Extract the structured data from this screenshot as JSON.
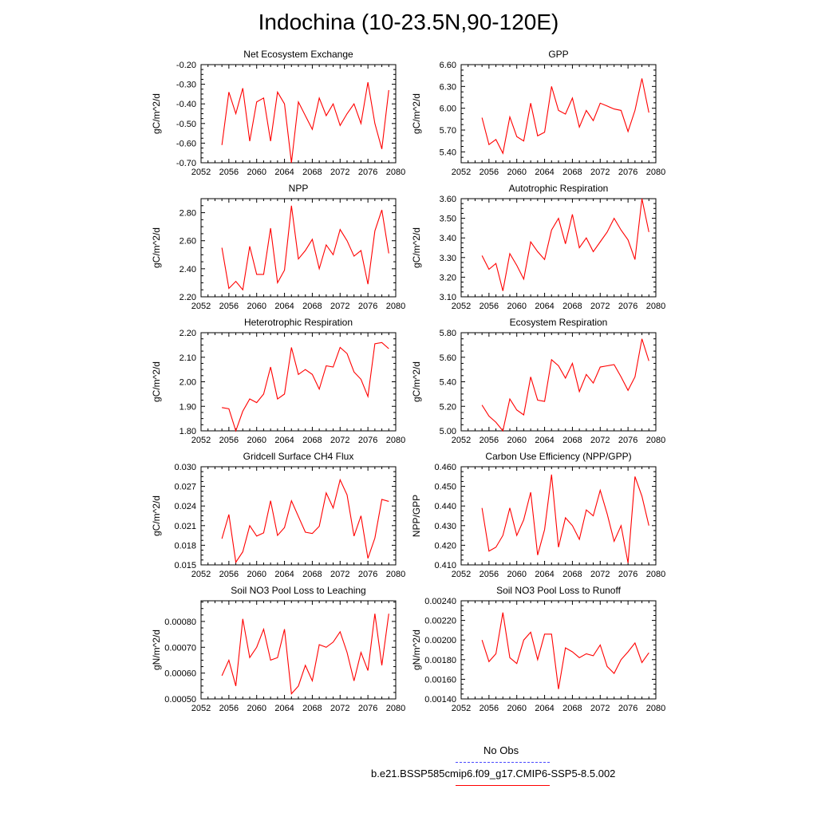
{
  "page": {
    "title": "Indochina (10-23.5N,90-120E)"
  },
  "legend": {
    "obs_label": "No Obs",
    "model_label": "b.e21.BSSP585cmip6.f09_g17.CMIP6-SSP5-8.5.002"
  },
  "colors": {
    "series": "#ff0000",
    "obs": "#4a4aff",
    "axes": "#000000"
  },
  "chart_data": [
    {
      "type": "line",
      "title": "Net Ecosystem Exchange",
      "xlabel": "",
      "ylabel": "gC/m^2/d",
      "xlim": [
        2052,
        2080
      ],
      "ylim": [
        -0.7,
        -0.2
      ],
      "xticks": [
        2052,
        2056,
        2060,
        2064,
        2068,
        2072,
        2076,
        2080
      ],
      "xtick_labels": [
        "2052",
        "2056",
        "2060",
        "2064",
        "2068",
        "2072",
        "2076",
        "2080"
      ],
      "yticks": [
        -0.7,
        -0.6,
        -0.5,
        -0.4,
        -0.3,
        -0.2
      ],
      "ytick_labels": [
        "-0.70",
        "-0.60",
        "-0.50",
        "-0.40",
        "-0.30",
        "-0.20"
      ],
      "x": [
        2055,
        2056,
        2057,
        2058,
        2059,
        2060,
        2061,
        2062,
        2063,
        2064,
        2065,
        2066,
        2067,
        2068,
        2069,
        2070,
        2071,
        2072,
        2073,
        2074,
        2075,
        2076,
        2077,
        2078,
        2079
      ],
      "values": [
        -0.61,
        -0.34,
        -0.45,
        -0.32,
        -0.59,
        -0.39,
        -0.37,
        -0.59,
        -0.34,
        -0.4,
        -0.7,
        -0.39,
        -0.46,
        -0.53,
        -0.37,
        -0.46,
        -0.4,
        -0.51,
        -0.45,
        -0.4,
        -0.5,
        -0.29,
        -0.5,
        -0.63,
        -0.33
      ]
    },
    {
      "type": "line",
      "title": "GPP",
      "xlabel": "",
      "ylabel": "gC/m^2/d",
      "xlim": [
        2052,
        2080
      ],
      "ylim": [
        5.25,
        6.6
      ],
      "xticks": [
        2052,
        2056,
        2060,
        2064,
        2068,
        2072,
        2076,
        2080
      ],
      "xtick_labels": [
        "2052",
        "2056",
        "2060",
        "2064",
        "2068",
        "2072",
        "2076",
        "2080"
      ],
      "yticks": [
        5.4,
        5.7,
        6.0,
        6.3,
        6.6
      ],
      "ytick_labels": [
        "5.40",
        "5.70",
        "6.00",
        "6.30",
        "6.60"
      ],
      "x": [
        2055,
        2056,
        2057,
        2058,
        2059,
        2060,
        2061,
        2062,
        2063,
        2064,
        2065,
        2066,
        2067,
        2068,
        2069,
        2070,
        2071,
        2072,
        2073,
        2074,
        2075,
        2076,
        2077,
        2078,
        2079
      ],
      "values": [
        5.87,
        5.5,
        5.57,
        5.38,
        5.88,
        5.61,
        5.55,
        6.07,
        5.62,
        5.67,
        6.3,
        5.97,
        5.92,
        6.14,
        5.74,
        5.97,
        5.83,
        6.07,
        6.03,
        5.99,
        5.97,
        5.68,
        5.97,
        6.41,
        5.94
      ]
    },
    {
      "type": "line",
      "title": "NPP",
      "xlabel": "",
      "ylabel": "gC/m^2/d",
      "xlim": [
        2052,
        2080
      ],
      "ylim": [
        2.2,
        2.9
      ],
      "xticks": [
        2052,
        2056,
        2060,
        2064,
        2068,
        2072,
        2076,
        2080
      ],
      "xtick_labels": [
        "2052",
        "2056",
        "2060",
        "2064",
        "2068",
        "2072",
        "2076",
        "2080"
      ],
      "yticks": [
        2.2,
        2.4,
        2.6,
        2.8
      ],
      "ytick_labels": [
        "2.20",
        "2.40",
        "2.60",
        "2.80"
      ],
      "x": [
        2055,
        2056,
        2057,
        2058,
        2059,
        2060,
        2061,
        2062,
        2063,
        2064,
        2065,
        2066,
        2067,
        2068,
        2069,
        2070,
        2071,
        2072,
        2073,
        2074,
        2075,
        2076,
        2077,
        2078,
        2079
      ],
      "values": [
        2.55,
        2.26,
        2.31,
        2.25,
        2.56,
        2.36,
        2.36,
        2.69,
        2.3,
        2.39,
        2.85,
        2.47,
        2.53,
        2.61,
        2.4,
        2.57,
        2.5,
        2.68,
        2.6,
        2.49,
        2.53,
        2.29,
        2.67,
        2.82,
        2.51
      ]
    },
    {
      "type": "line",
      "title": "Autotrophic Respiration",
      "xlabel": "",
      "ylabel": "gC/m^2/d",
      "xlim": [
        2052,
        2080
      ],
      "ylim": [
        3.1,
        3.6
      ],
      "xticks": [
        2052,
        2056,
        2060,
        2064,
        2068,
        2072,
        2076,
        2080
      ],
      "xtick_labels": [
        "2052",
        "2056",
        "2060",
        "2064",
        "2068",
        "2072",
        "2076",
        "2080"
      ],
      "yticks": [
        3.1,
        3.2,
        3.3,
        3.4,
        3.5,
        3.6
      ],
      "ytick_labels": [
        "3.10",
        "3.20",
        "3.30",
        "3.40",
        "3.50",
        "3.60"
      ],
      "x": [
        2055,
        2056,
        2057,
        2058,
        2059,
        2060,
        2061,
        2062,
        2063,
        2064,
        2065,
        2066,
        2067,
        2068,
        2069,
        2070,
        2071,
        2072,
        2073,
        2074,
        2075,
        2076,
        2077,
        2078,
        2079
      ],
      "values": [
        3.31,
        3.24,
        3.27,
        3.13,
        3.32,
        3.26,
        3.19,
        3.38,
        3.33,
        3.29,
        3.44,
        3.5,
        3.37,
        3.52,
        3.35,
        3.4,
        3.33,
        3.38,
        3.43,
        3.5,
        3.44,
        3.39,
        3.29,
        3.6,
        3.43
      ]
    },
    {
      "type": "line",
      "title": "Heterotrophic Respiration",
      "xlabel": "",
      "ylabel": "gC/m^2/d",
      "xlim": [
        2052,
        2080
      ],
      "ylim": [
        1.8,
        2.2
      ],
      "xticks": [
        2052,
        2056,
        2060,
        2064,
        2068,
        2072,
        2076,
        2080
      ],
      "xtick_labels": [
        "2052",
        "2056",
        "2060",
        "2064",
        "2068",
        "2072",
        "2076",
        "2080"
      ],
      "yticks": [
        1.8,
        1.9,
        2.0,
        2.1,
        2.2
      ],
      "ytick_labels": [
        "1.80",
        "1.90",
        "2.00",
        "2.10",
        "2.20"
      ],
      "x": [
        2055,
        2056,
        2057,
        2058,
        2059,
        2060,
        2061,
        2062,
        2063,
        2064,
        2065,
        2066,
        2067,
        2068,
        2069,
        2070,
        2071,
        2072,
        2073,
        2074,
        2075,
        2076,
        2077,
        2078,
        2079
      ],
      "values": [
        1.895,
        1.89,
        1.8,
        1.88,
        1.93,
        1.915,
        1.95,
        2.06,
        1.93,
        1.95,
        2.14,
        2.03,
        2.05,
        2.03,
        1.97,
        2.065,
        2.06,
        2.14,
        2.115,
        2.04,
        2.01,
        1.94,
        2.155,
        2.16,
        2.135
      ]
    },
    {
      "type": "line",
      "title": "Ecosystem Respiration",
      "xlabel": "",
      "ylabel": "gC/m^2/d",
      "xlim": [
        2052,
        2080
      ],
      "ylim": [
        5.0,
        5.8
      ],
      "xticks": [
        2052,
        2056,
        2060,
        2064,
        2068,
        2072,
        2076,
        2080
      ],
      "xtick_labels": [
        "2052",
        "2056",
        "2060",
        "2064",
        "2068",
        "2072",
        "2076",
        "2080"
      ],
      "yticks": [
        5.0,
        5.2,
        5.4,
        5.6,
        5.8
      ],
      "ytick_labels": [
        "5.00",
        "5.20",
        "5.40",
        "5.60",
        "5.80"
      ],
      "x": [
        2055,
        2056,
        2057,
        2058,
        2059,
        2060,
        2061,
        2062,
        2063,
        2064,
        2065,
        2066,
        2067,
        2068,
        2069,
        2070,
        2071,
        2072,
        2073,
        2074,
        2075,
        2076,
        2077,
        2078,
        2079
      ],
      "values": [
        5.21,
        5.12,
        5.07,
        5.0,
        5.26,
        5.17,
        5.13,
        5.44,
        5.25,
        5.24,
        5.58,
        5.53,
        5.43,
        5.55,
        5.32,
        5.46,
        5.39,
        5.52,
        5.53,
        5.54,
        5.44,
        5.33,
        5.44,
        5.75,
        5.57
      ]
    },
    {
      "type": "line",
      "title": "Gridcell Surface CH4 Flux",
      "xlabel": "",
      "ylabel": "gC/m^2/d",
      "xlim": [
        2052,
        2080
      ],
      "ylim": [
        0.015,
        0.03
      ],
      "xticks": [
        2052,
        2056,
        2060,
        2064,
        2068,
        2072,
        2076,
        2080
      ],
      "xtick_labels": [
        "2052",
        "2056",
        "2060",
        "2064",
        "2068",
        "2072",
        "2076",
        "2080"
      ],
      "yticks": [
        0.015,
        0.018,
        0.021,
        0.024,
        0.027,
        0.03
      ],
      "ytick_labels": [
        "0.015",
        "0.018",
        "0.021",
        "0.024",
        "0.027",
        "0.030"
      ],
      "x": [
        2055,
        2056,
        2057,
        2058,
        2059,
        2060,
        2061,
        2062,
        2063,
        2064,
        2065,
        2066,
        2067,
        2068,
        2069,
        2070,
        2071,
        2072,
        2073,
        2074,
        2075,
        2076,
        2077,
        2078,
        2079
      ],
      "values": [
        0.019,
        0.0227,
        0.0154,
        0.017,
        0.021,
        0.0194,
        0.0199,
        0.0248,
        0.0195,
        0.0207,
        0.0248,
        0.0224,
        0.02,
        0.0198,
        0.0209,
        0.026,
        0.0237,
        0.028,
        0.0257,
        0.0194,
        0.0225,
        0.016,
        0.0191,
        0.025,
        0.0247
      ]
    },
    {
      "type": "line",
      "title": "Carbon Use Efficiency (NPP/GPP)",
      "xlabel": "",
      "ylabel": "NPP/GPP",
      "xlim": [
        2052,
        2080
      ],
      "ylim": [
        0.41,
        0.46
      ],
      "xticks": [
        2052,
        2056,
        2060,
        2064,
        2068,
        2072,
        2076,
        2080
      ],
      "xtick_labels": [
        "2052",
        "2056",
        "2060",
        "2064",
        "2068",
        "2072",
        "2076",
        "2080"
      ],
      "yticks": [
        0.41,
        0.42,
        0.43,
        0.44,
        0.45,
        0.46
      ],
      "ytick_labels": [
        "0.410",
        "0.420",
        "0.430",
        "0.440",
        "0.450",
        "0.460"
      ],
      "x": [
        2055,
        2056,
        2057,
        2058,
        2059,
        2060,
        2061,
        2062,
        2063,
        2064,
        2065,
        2066,
        2067,
        2068,
        2069,
        2070,
        2071,
        2072,
        2073,
        2074,
        2075,
        2076,
        2077,
        2078,
        2079
      ],
      "values": [
        0.439,
        0.417,
        0.419,
        0.425,
        0.439,
        0.425,
        0.433,
        0.447,
        0.415,
        0.428,
        0.456,
        0.419,
        0.434,
        0.43,
        0.423,
        0.438,
        0.435,
        0.448,
        0.436,
        0.422,
        0.43,
        0.411,
        0.455,
        0.445,
        0.43
      ]
    },
    {
      "type": "line",
      "title": "Soil NO3 Pool Loss to Leaching",
      "xlabel": "",
      "ylabel": "gN/m^2/d",
      "xlim": [
        2052,
        2080
      ],
      "ylim": [
        0.0005,
        0.00088
      ],
      "xticks": [
        2052,
        2056,
        2060,
        2064,
        2068,
        2072,
        2076,
        2080
      ],
      "xtick_labels": [
        "2052",
        "2056",
        "2060",
        "2064",
        "2068",
        "2072",
        "2076",
        "2080"
      ],
      "yticks": [
        0.0005,
        0.0006,
        0.0007,
        0.0008
      ],
      "ytick_labels": [
        "0.00050",
        "0.00060",
        "0.00070",
        "0.00080"
      ],
      "x": [
        2055,
        2056,
        2057,
        2058,
        2059,
        2060,
        2061,
        2062,
        2063,
        2064,
        2065,
        2066,
        2067,
        2068,
        2069,
        2070,
        2071,
        2072,
        2073,
        2074,
        2075,
        2076,
        2077,
        2078,
        2079
      ],
      "values": [
        0.00059,
        0.00065,
        0.00055,
        0.00081,
        0.00066,
        0.0007,
        0.00077,
        0.00065,
        0.00066,
        0.00077,
        0.00052,
        0.00055,
        0.00063,
        0.00057,
        0.00071,
        0.0007,
        0.00072,
        0.00076,
        0.00068,
        0.00057,
        0.00068,
        0.00061,
        0.00083,
        0.00063,
        0.00083
      ]
    },
    {
      "type": "line",
      "title": "Soil NO3 Pool Loss to Runoff",
      "xlabel": "",
      "ylabel": "gN/m^2/d",
      "xlim": [
        2052,
        2080
      ],
      "ylim": [
        0.0014,
        0.0024
      ],
      "xticks": [
        2052,
        2056,
        2060,
        2064,
        2068,
        2072,
        2076,
        2080
      ],
      "xtick_labels": [
        "2052",
        "2056",
        "2060",
        "2064",
        "2068",
        "2072",
        "2076",
        "2080"
      ],
      "yticks": [
        0.0014,
        0.0016,
        0.0018,
        0.002,
        0.0022,
        0.0024
      ],
      "ytick_labels": [
        "0.00140",
        "0.00160",
        "0.00180",
        "0.00200",
        "0.00220",
        "0.00240"
      ],
      "x": [
        2055,
        2056,
        2057,
        2058,
        2059,
        2060,
        2061,
        2062,
        2063,
        2064,
        2065,
        2066,
        2067,
        2068,
        2069,
        2070,
        2071,
        2072,
        2073,
        2074,
        2075,
        2076,
        2077,
        2078,
        2079
      ],
      "values": [
        0.002,
        0.00178,
        0.00186,
        0.00228,
        0.00182,
        0.00176,
        0.002,
        0.00208,
        0.0018,
        0.00206,
        0.00206,
        0.0015,
        0.00192,
        0.00188,
        0.00182,
        0.00186,
        0.00184,
        0.00195,
        0.00173,
        0.00166,
        0.0018,
        0.00188,
        0.00197,
        0.00177,
        0.00187
      ]
    }
  ]
}
